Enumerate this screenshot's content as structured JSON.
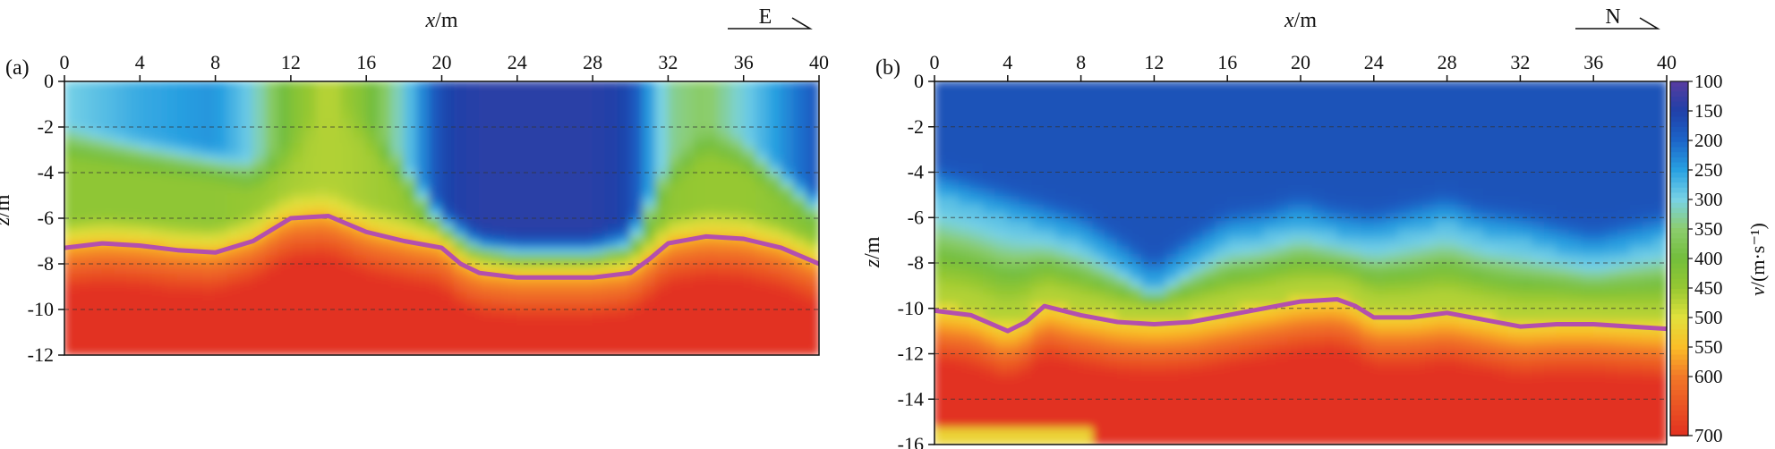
{
  "chart_data": [
    {
      "panel": "(a)",
      "type": "heatmap",
      "xlabel_var": "x",
      "xlabel_unit": "/m",
      "ylabel_var": "z",
      "ylabel_unit": "/m",
      "xlim": [
        0,
        40
      ],
      "ylim": [
        -12,
        0
      ],
      "xticks": [
        0,
        4,
        8,
        12,
        16,
        20,
        24,
        28,
        32,
        36,
        40
      ],
      "yticks": [
        0,
        -2,
        -4,
        -6,
        -8,
        -10,
        -12
      ],
      "gridlines_z": [
        -2,
        -4,
        -6,
        -8,
        -10
      ],
      "direction_label": "E",
      "interface_line": {
        "x": [
          0,
          2,
          4,
          6,
          8,
          10,
          12,
          14,
          16,
          18,
          20,
          21,
          22,
          24,
          28,
          30,
          31,
          32,
          34,
          36,
          38,
          40
        ],
        "z": [
          -7.3,
          -7.1,
          -7.2,
          -7.4,
          -7.5,
          -7.0,
          -6.0,
          -5.9,
          -6.6,
          -7.0,
          -7.3,
          -8.0,
          -8.4,
          -8.6,
          -8.6,
          -8.4,
          -7.8,
          -7.1,
          -6.8,
          -6.9,
          -7.3,
          -8.0
        ]
      },
      "velocity_columns": {
        "x": [
          0,
          4,
          8,
          10,
          12,
          14,
          16,
          18,
          20,
          22,
          24,
          28,
          30,
          32,
          34,
          36,
          40
        ],
        "v_top": [
          300,
          260,
          240,
          300,
          420,
          480,
          420,
          300,
          160,
          140,
          140,
          140,
          160,
          330,
          360,
          300,
          180
        ],
        "z_shallow": [
          -2.5,
          -3.0,
          -3.5,
          -4.0,
          -3.0,
          -1.0,
          -2.0,
          -4.0,
          -6.0,
          -7.0,
          -7.2,
          -7.2,
          -6.8,
          -4.0,
          -2.5,
          -3.0,
          -5.5
        ],
        "v_mid": [
          440,
          440,
          440,
          450,
          460,
          470,
          460,
          450,
          400,
          350,
          350,
          350,
          360,
          440,
          450,
          450,
          420
        ]
      }
    },
    {
      "panel": "(b)",
      "type": "heatmap",
      "xlabel_var": "x",
      "xlabel_unit": "/m",
      "ylabel_var": "z",
      "ylabel_unit": "/m",
      "xlim": [
        0,
        40
      ],
      "ylim": [
        -16,
        0
      ],
      "xticks": [
        0,
        4,
        8,
        12,
        16,
        20,
        24,
        28,
        32,
        36,
        40
      ],
      "yticks": [
        0,
        -2,
        -4,
        -6,
        -8,
        -10,
        -12,
        -14,
        -16
      ],
      "gridlines_z": [
        -2,
        -4,
        -6,
        -8,
        -10,
        -12,
        -14
      ],
      "direction_label": "N",
      "interface_line": {
        "x": [
          0,
          2,
          4,
          5,
          6,
          8,
          10,
          12,
          14,
          16,
          18,
          20,
          22,
          23,
          24,
          26,
          28,
          30,
          32,
          34,
          36,
          38,
          40
        ],
        "z": [
          -10.1,
          -10.3,
          -11.0,
          -10.6,
          -9.9,
          -10.3,
          -10.6,
          -10.7,
          -10.6,
          -10.3,
          -10.0,
          -9.7,
          -9.6,
          -9.9,
          -10.4,
          -10.4,
          -10.2,
          -10.5,
          -10.8,
          -10.7,
          -10.7,
          -10.8,
          -10.9
        ]
      },
      "velocity_columns": {
        "x": [
          0,
          4,
          8,
          10,
          12,
          14,
          16,
          18,
          20,
          22,
          24,
          28,
          30,
          32,
          36,
          40
        ],
        "z_lowvel_base": [
          -5.0,
          -6.0,
          -7.0,
          -8.0,
          -9.2,
          -8.0,
          -7.0,
          -6.8,
          -6.3,
          -6.8,
          -7.0,
          -6.2,
          -6.8,
          -7.0,
          -7.8,
          -7.0
        ]
      },
      "colorbar": {
        "label_var": "v",
        "label_unit": "/(m·s⁻¹)",
        "ticks": [
          100,
          150,
          200,
          250,
          300,
          350,
          400,
          450,
          500,
          550,
          600,
          700
        ]
      }
    }
  ]
}
